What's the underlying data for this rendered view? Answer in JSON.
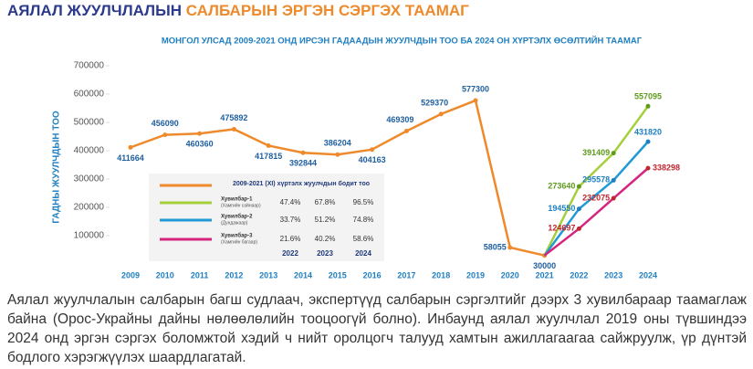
{
  "header": {
    "title_part1": "АЯЛАЛ ЖУУЛЧЛАЛЫН",
    "title_part2": "САЛБАРЫН ЭРГЭН СЭРГЭХ ТААМАГ"
  },
  "chart_data": {
    "type": "line",
    "title": "МОНГОЛ УЛСАД 2009-2021 ОНД ИРСЭН ГАДААДЫН ЖУУЛЧДЫН ТОО БА 2024 ОН ХҮРТЭЛХ ӨСӨЛТИЙН ТААМАГ",
    "y_label": "ГАДНЫ ЖУУЛЧДЫН ТОО",
    "categories": [
      "2009",
      "2010",
      "2011",
      "2012",
      "2013",
      "2014",
      "2015",
      "2016",
      "2017",
      "2018",
      "2019",
      "2020",
      "2021",
      "2022",
      "2023",
      "2024"
    ],
    "ylim": [
      0,
      700000
    ],
    "yticks": [
      100000,
      200000,
      300000,
      400000,
      500000,
      600000,
      700000
    ],
    "series": [
      {
        "name": "2009-2021 (XI) хүртэлх жуулчдын бодит тоо",
        "color": "#ee8a2b",
        "values": [
          411664,
          456090,
          460360,
          475892,
          417815,
          392844,
          386204,
          404163,
          469309,
          529370,
          577300,
          58055,
          30000,
          null,
          null,
          null
        ]
      },
      {
        "name": "Хувилбар-1",
        "note": "(Хамгийн сайнаар)",
        "color": "#a6cf3c",
        "label_color": "#5f9a1e",
        "values": [
          null,
          null,
          null,
          null,
          null,
          null,
          null,
          null,
          null,
          null,
          null,
          null,
          null,
          273640,
          391409,
          557095
        ],
        "growth": [
          "47.4%",
          "67.8%",
          "96.5%"
        ]
      },
      {
        "name": "Хувилбар-2",
        "note": "(Дундажаар)",
        "color": "#1f9ad6",
        "label_color": "#1f7fc0",
        "values": [
          null,
          null,
          null,
          null,
          null,
          null,
          null,
          null,
          null,
          null,
          null,
          null,
          null,
          194550,
          295578,
          431820
        ],
        "growth": [
          "33.7%",
          "51.2%",
          "74.8%"
        ]
      },
      {
        "name": "Хувилбар-3",
        "note": "(Хамгийн багаар)",
        "color": "#d6257e",
        "label_color": "#c0262e",
        "values": [
          null,
          null,
          null,
          null,
          null,
          null,
          null,
          null,
          null,
          null,
          null,
          null,
          null,
          124697,
          232075,
          338298
        ],
        "growth": [
          "21.6%",
          "40.2%",
          "58.6%"
        ]
      }
    ],
    "growth_years": [
      "2022",
      "2023",
      "2024"
    ]
  },
  "paragraph": "Аялал жуулчлалын салбарын багш судлаач, экспертүүд салбарын сэргэлтийг дээрх 3 хувилбараар таамаглаж байна (Орос-Украйны дайны нөлөөлөлийн тооцоогүй болно). Инбаунд аялал жуулчлал 2019 оны түвшиндээ 2024 онд эргэн сэргэх боломжтой хэдий ч нийт оролцогч талууд хамтын ажиллагаагаа сайжруулж, үр дүнтэй бодлого хэрэгжүүлэх шаардлагатай."
}
